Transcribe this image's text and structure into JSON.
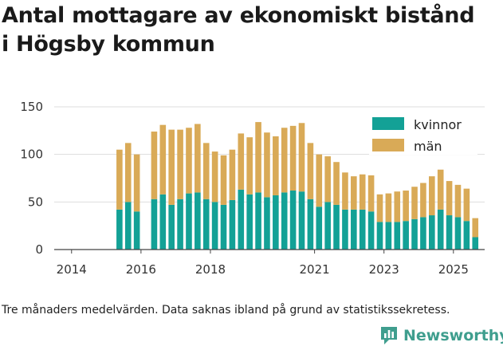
{
  "title_line1": "Antal mottagare av ekonomiskt bistånd",
  "title_line2": "i Högsby kommun",
  "footnote": "Tre månaders medelvärden. Data saknas ibland på grund av statistikssekretess.",
  "brand": {
    "name": "Newsworthy",
    "icon": "newsworthy-logo-icon",
    "color": "#3f9e8e"
  },
  "colors": {
    "kvinnor": "#13a196",
    "man": "#d9aa57",
    "axis": "#444444",
    "grid": "#dddddd"
  },
  "chart_data": {
    "type": "bar",
    "stacked": true,
    "title": "Antal mottagare av ekonomiskt bistånd i Högsby kommun",
    "xlabel": "",
    "ylabel": "",
    "ylim": [
      0,
      150
    ],
    "yticks": [
      0,
      50,
      100,
      150
    ],
    "xlim": [
      2013.5,
      2025.9
    ],
    "xticks": [
      2014,
      2016,
      2018,
      2021,
      2023,
      2025
    ],
    "xtick_labels": [
      "2014",
      "2016",
      "2018",
      "2021",
      "2023",
      "2025"
    ],
    "legend": {
      "position": "top-right",
      "entries": [
        "kvinnor",
        "män"
      ]
    },
    "x": [
      2015.38,
      2015.63,
      2015.88,
      2016.38,
      2016.63,
      2016.88,
      2017.13,
      2017.38,
      2017.63,
      2017.88,
      2018.13,
      2018.38,
      2018.63,
      2018.88,
      2019.13,
      2019.38,
      2019.63,
      2019.88,
      2020.13,
      2020.38,
      2020.63,
      2020.88,
      2021.13,
      2021.38,
      2021.63,
      2021.88,
      2022.13,
      2022.38,
      2022.63,
      2022.88,
      2023.13,
      2023.38,
      2023.63,
      2023.88,
      2024.13,
      2024.38,
      2024.63,
      2024.88,
      2025.13,
      2025.38,
      2025.63
    ],
    "series": [
      {
        "name": "kvinnor",
        "values": [
          42,
          50,
          40,
          53,
          58,
          47,
          53,
          59,
          60,
          53,
          50,
          47,
          52,
          63,
          58,
          60,
          55,
          57,
          60,
          62,
          61,
          53,
          45,
          50,
          47,
          42,
          42,
          42,
          40,
          29,
          29,
          29,
          30,
          32,
          34,
          36,
          42,
          36,
          34,
          30,
          13
        ]
      },
      {
        "name": "män",
        "values": [
          63,
          62,
          60,
          71,
          73,
          79,
          73,
          69,
          72,
          59,
          53,
          52,
          53,
          59,
          60,
          74,
          68,
          62,
          68,
          68,
          72,
          59,
          55,
          48,
          45,
          39,
          35,
          37,
          38,
          29,
          30,
          32,
          32,
          34,
          36,
          41,
          42,
          36,
          34,
          34,
          20
        ]
      }
    ]
  }
}
